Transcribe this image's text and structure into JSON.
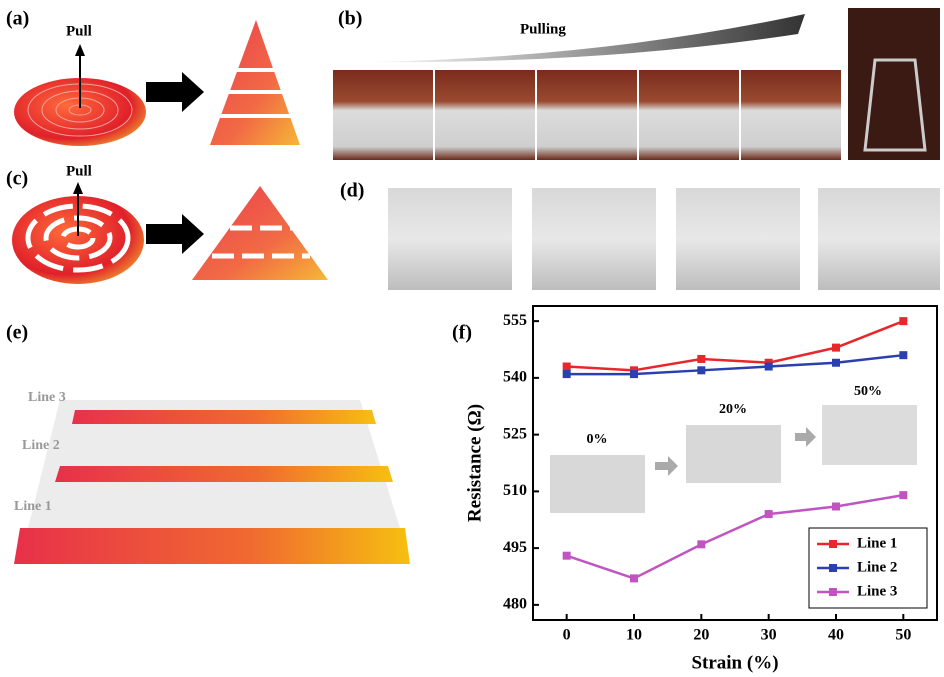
{
  "panels": {
    "a": {
      "label": "(a)",
      "pull": "Pull"
    },
    "b": {
      "label": "(b)",
      "caption": "Pulling"
    },
    "c": {
      "label": "(c)",
      "pull": "Pull"
    },
    "d": {
      "label": "(d)"
    },
    "e": {
      "label": "(e)",
      "lines": [
        "Line 3",
        "Line 2",
        "Line 1"
      ]
    },
    "f": {
      "label": "(f)"
    }
  },
  "chart_data": {
    "type": "line",
    "xlabel": "Strain (%)",
    "ylabel": "Resistance (Ω)",
    "x": [
      0,
      10,
      20,
      30,
      40,
      50
    ],
    "xlim": [
      -5,
      55
    ],
    "xticks": [
      0,
      10,
      20,
      30,
      40,
      50
    ],
    "ylim": [
      476,
      559
    ],
    "yticks": [
      480,
      495,
      510,
      525,
      540,
      555
    ],
    "legend": "lower right",
    "annotations": [
      "0%",
      "20%",
      "50%"
    ],
    "series": [
      {
        "name": "Line 1",
        "color": "#e8262b",
        "values": [
          543,
          542,
          545,
          544,
          548,
          555
        ]
      },
      {
        "name": "Line 2",
        "color": "#2b3fb0",
        "values": [
          541,
          541,
          542,
          543,
          544,
          546
        ]
      },
      {
        "name": "Line 3",
        "color": "#c054c0",
        "values": [
          493,
          487,
          496,
          504,
          506,
          509
        ]
      }
    ]
  }
}
